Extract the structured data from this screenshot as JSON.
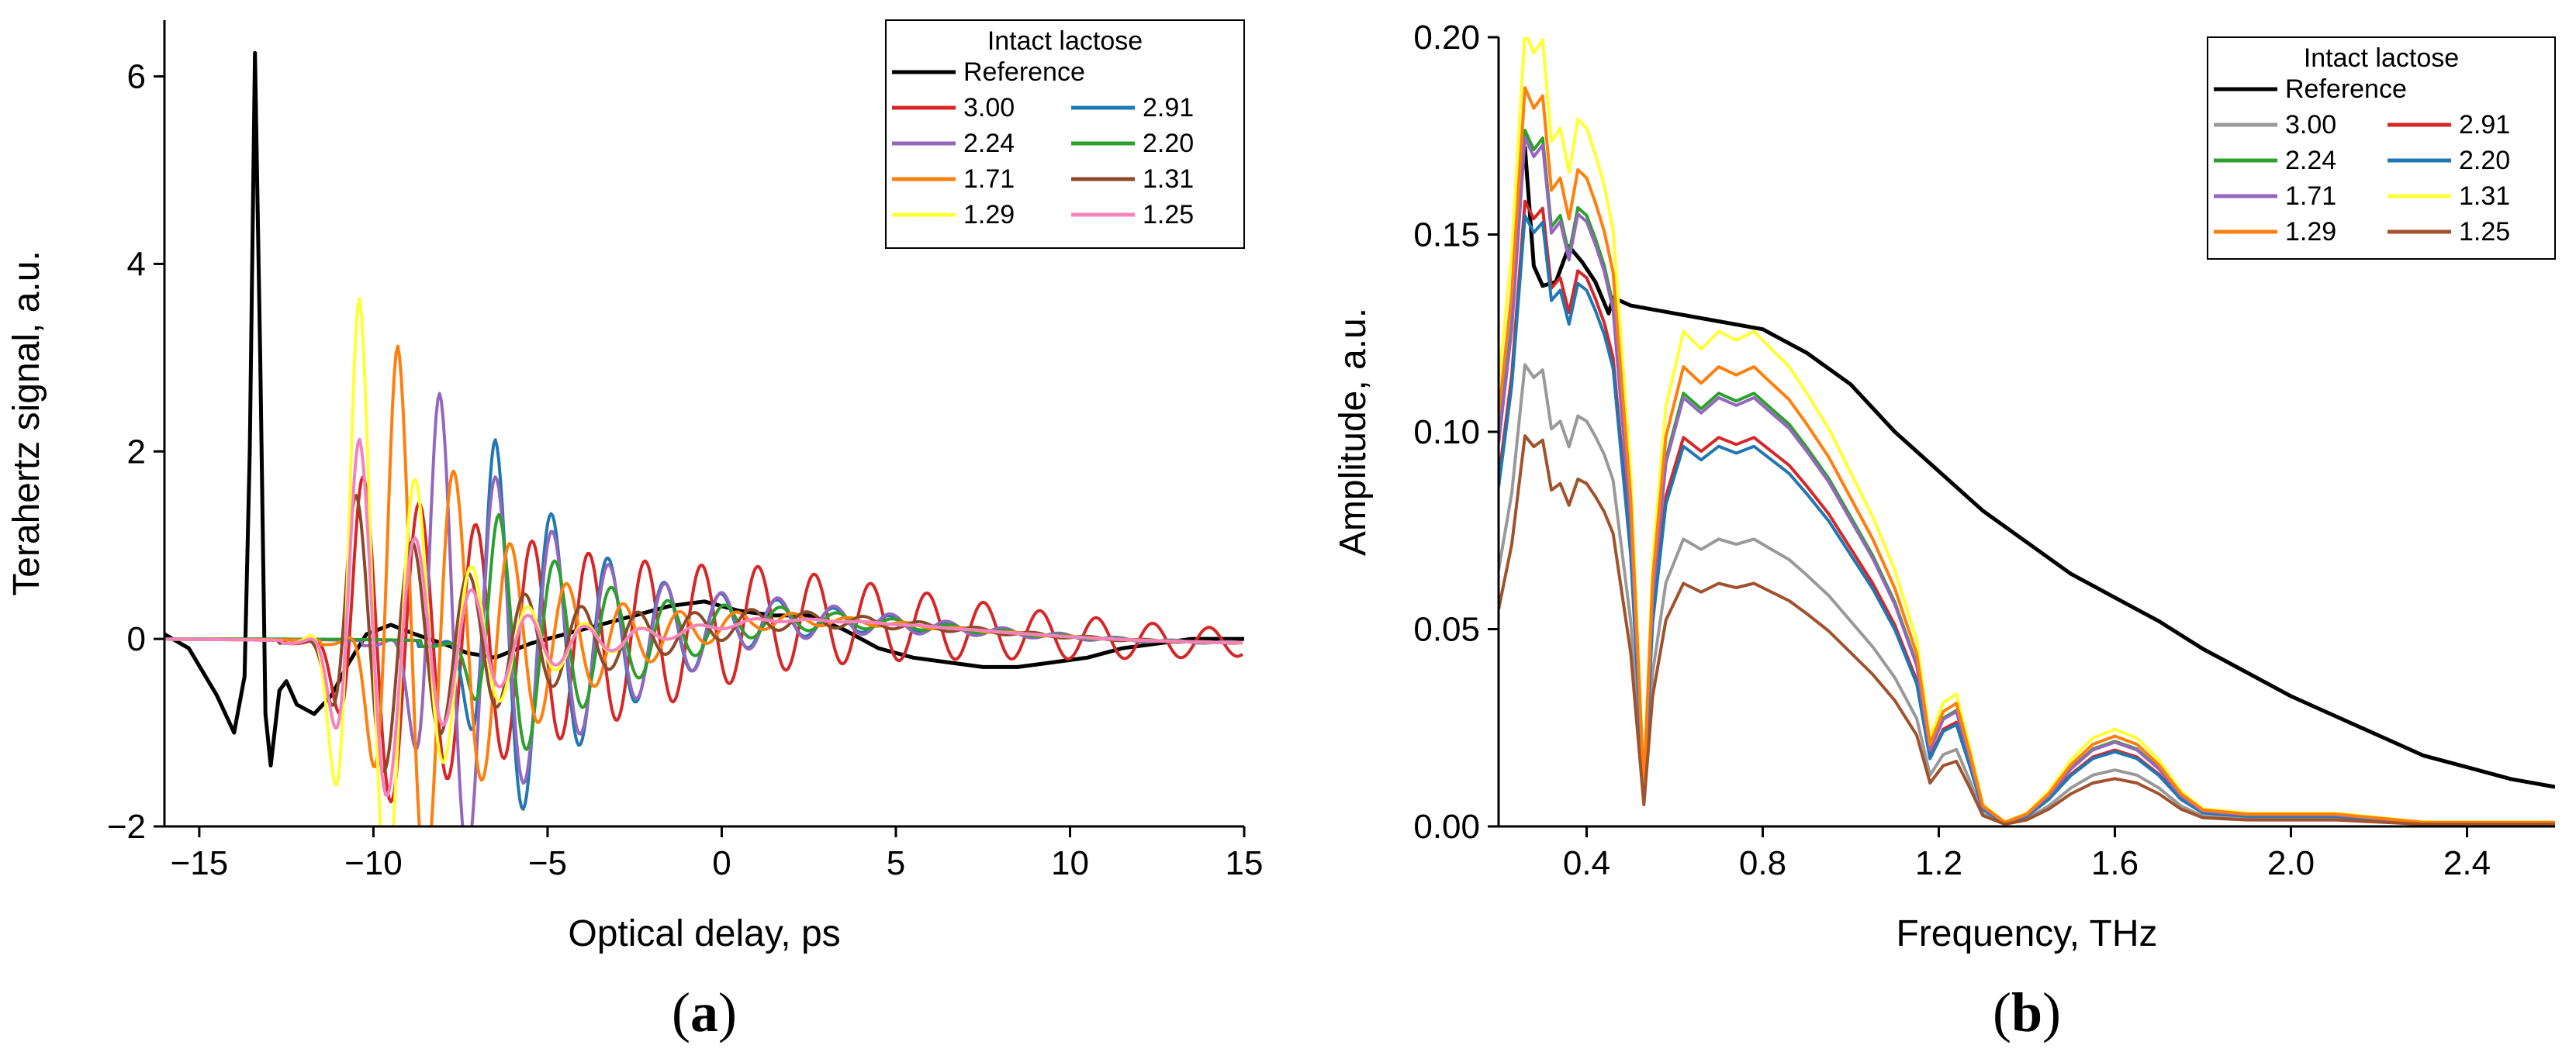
{
  "chart_data": [
    {
      "id": "a",
      "type": "line",
      "panel_label_open": "(",
      "panel_label_letter": "a",
      "panel_label_close": ")",
      "xlabel": "Optical delay, ps",
      "ylabel": "Terahertz signal, a.u.",
      "xlim": [
        -16,
        15
      ],
      "ylim": [
        -2,
        6.6
      ],
      "xticks": [
        -15,
        -10,
        -5,
        0,
        5,
        10,
        15
      ],
      "xtick_labels": [
        "−15",
        "−10",
        "−5",
        "0",
        "5",
        "10",
        "15"
      ],
      "yticks": [
        -2,
        0,
        2,
        4,
        6
      ],
      "ytick_labels": [
        "−2",
        "0",
        "2",
        "4",
        "6"
      ],
      "legend_title": "Intact lactose",
      "legend_position": "top-right",
      "series": [
        {
          "name": "Reference",
          "color": "#000000",
          "width": 5,
          "points": [
            [
              -16,
              0.05
            ],
            [
              -15.3,
              -0.1
            ],
            [
              -14.5,
              -0.6
            ],
            [
              -14,
              -1.0
            ],
            [
              -13.7,
              -0.4
            ],
            [
              -13.55,
              2.0
            ],
            [
              -13.4,
              6.25
            ],
            [
              -13.25,
              3.0
            ],
            [
              -13.1,
              -0.8
            ],
            [
              -12.95,
              -1.35
            ],
            [
              -12.7,
              -0.55
            ],
            [
              -12.5,
              -0.45
            ],
            [
              -12.2,
              -0.7
            ],
            [
              -11.7,
              -0.8
            ],
            [
              -11.2,
              -0.6
            ],
            [
              -10.7,
              -0.25
            ],
            [
              -10.2,
              0.05
            ],
            [
              -9.5,
              0.15
            ],
            [
              -8.8,
              0.05
            ],
            [
              -8,
              -0.05
            ],
            [
              -7.3,
              -0.15
            ],
            [
              -6.5,
              -0.2
            ],
            [
              -5.5,
              -0.05
            ],
            [
              -4.5,
              0.05
            ],
            [
              -3.5,
              0.15
            ],
            [
              -2.5,
              0.25
            ],
            [
              -1.5,
              0.35
            ],
            [
              -0.5,
              0.4
            ],
            [
              0.5,
              0.3
            ],
            [
              1.5,
              0.25
            ],
            [
              2.5,
              0.25
            ],
            [
              3.5,
              0.1
            ],
            [
              4.5,
              -0.1
            ],
            [
              5.5,
              -0.2
            ],
            [
              6.5,
              -0.25
            ],
            [
              7.5,
              -0.3
            ],
            [
              8.5,
              -0.3
            ],
            [
              9.5,
              -0.25
            ],
            [
              10.5,
              -0.2
            ],
            [
              11.5,
              -0.1
            ],
            [
              12.5,
              -0.05
            ],
            [
              13.5,
              0.0
            ],
            [
              15,
              0.0
            ]
          ]
        },
        {
          "name": "3.00",
          "color": "#d62728",
          "width": 4,
          "t0": -10.3,
          "amp": 1.8,
          "period": 1.62,
          "decay": 10,
          "drift": 0.0
        },
        {
          "name": "2.91",
          "color": "#1f77b4",
          "width": 4,
          "t0": -6.5,
          "amp": 2.2,
          "period": 1.62,
          "decay": 3.5,
          "drift": 0.0
        },
        {
          "name": "2.24",
          "color": "#9467bd",
          "width": 4,
          "t0": -8.1,
          "amp": 2.7,
          "period": 1.62,
          "decay": 4.0,
          "drift": 0.0
        },
        {
          "name": "2.20",
          "color": "#2ca02c",
          "width": 4,
          "t0": -6.4,
          "amp": 1.4,
          "period": 1.62,
          "decay": 3.5,
          "drift": 0.0
        },
        {
          "name": "1.71",
          "color": "#ff7f0e",
          "width": 4,
          "t0": -9.3,
          "amp": 3.2,
          "period": 1.62,
          "decay": 3.0,
          "drift": 0.0
        },
        {
          "name": "1.31",
          "color": "#8c4a2a",
          "width": 4,
          "t0": -10.5,
          "amp": 1.6,
          "period": 1.62,
          "decay": 4.5,
          "drift": 0.0
        },
        {
          "name": "1.29",
          "color": "#ffff33",
          "width": 4,
          "t0": -10.4,
          "amp": 3.7,
          "period": 1.62,
          "decay": 2.2,
          "drift": 0.0
        },
        {
          "name": "1.25",
          "color": "#f781bf",
          "width": 4,
          "t0": -10.4,
          "amp": 2.2,
          "period": 1.62,
          "decay": 2.5,
          "drift": 0.0
        }
      ]
    },
    {
      "id": "b",
      "type": "line",
      "panel_label_open": "(",
      "panel_label_letter": "b",
      "panel_label_close": ")",
      "xlabel": "Frequency, THz",
      "ylabel": "Amplitude, a.u.",
      "xlim": [
        0.2,
        2.6
      ],
      "ylim": [
        0,
        0.2
      ],
      "xticks": [
        0.4,
        0.8,
        1.2,
        1.6,
        2.0,
        2.4
      ],
      "xtick_labels": [
        "0.4",
        "0.8",
        "1.2",
        "1.6",
        "2.0",
        "2.4"
      ],
      "yticks": [
        0,
        0.05,
        0.1,
        0.15,
        0.2
      ],
      "ytick_labels": [
        "0.00",
        "0.05",
        "0.10",
        "0.15",
        "0.20"
      ],
      "legend_title": "Intact lactose",
      "legend_position": "top-right",
      "series": [
        {
          "name": "Reference",
          "color": "#000000",
          "width": 5,
          "points": [
            [
              0.24,
              0.16
            ],
            [
              0.26,
              0.172
            ],
            [
              0.28,
              0.142
            ],
            [
              0.3,
              0.137
            ],
            [
              0.33,
              0.138
            ],
            [
              0.36,
              0.147
            ],
            [
              0.39,
              0.143
            ],
            [
              0.42,
              0.138
            ],
            [
              0.45,
              0.13
            ],
            [
              0.46,
              0.134
            ],
            [
              0.5,
              0.132
            ],
            [
              0.6,
              0.13
            ],
            [
              0.7,
              0.128
            ],
            [
              0.8,
              0.126
            ],
            [
              0.9,
              0.12
            ],
            [
              1.0,
              0.112
            ],
            [
              1.1,
              0.1
            ],
            [
              1.2,
              0.09
            ],
            [
              1.3,
              0.08
            ],
            [
              1.4,
              0.072
            ],
            [
              1.5,
              0.064
            ],
            [
              1.6,
              0.058
            ],
            [
              1.7,
              0.052
            ],
            [
              1.8,
              0.045
            ],
            [
              1.9,
              0.039
            ],
            [
              2.0,
              0.033
            ],
            [
              2.1,
              0.028
            ],
            [
              2.2,
              0.023
            ],
            [
              2.3,
              0.018
            ],
            [
              2.4,
              0.015
            ],
            [
              2.5,
              0.012
            ],
            [
              2.6,
              0.01
            ]
          ]
        },
        {
          "name": "3.00",
          "color": "#999999",
          "width": 4,
          "scale": 0.65
        },
        {
          "name": "2.91",
          "color": "#d62728",
          "width": 4,
          "scale": 0.88
        },
        {
          "name": "2.24",
          "color": "#2ca02c",
          "width": 4,
          "scale": 0.98
        },
        {
          "name": "2.20",
          "color": "#1f77b4",
          "width": 4,
          "scale": 0.86
        },
        {
          "name": "1.71",
          "color": "#9467bd",
          "width": 4,
          "scale": 0.97
        },
        {
          "name": "1.31",
          "color": "#ffff33",
          "width": 4,
          "scale": 1.12
        },
        {
          "name": "1.29",
          "color": "#ff7f0e",
          "width": 4,
          "scale": 1.04
        },
        {
          "name": "1.25",
          "color": "#a0522d",
          "width": 4,
          "scale": 0.55
        }
      ]
    }
  ]
}
